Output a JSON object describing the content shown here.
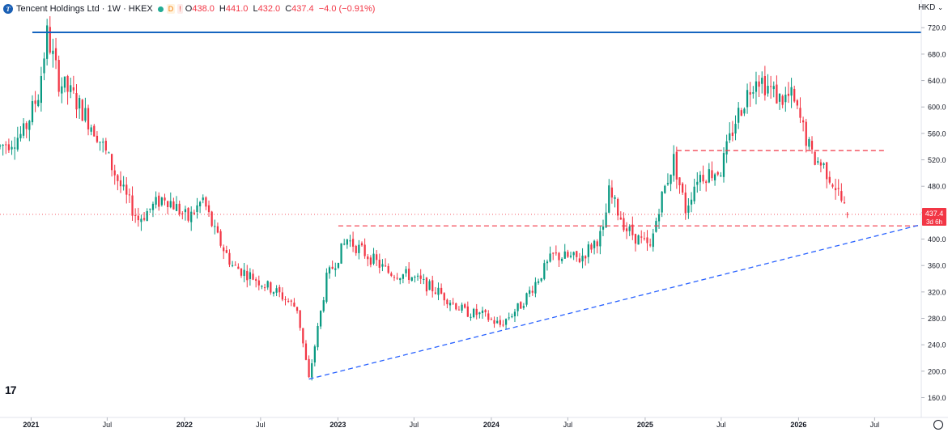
{
  "header": {
    "symbol": "Tencent Holdings Ltd · 1W · HKEX",
    "logo_letter": "T",
    "badge_d": "D",
    "badge_flag": "!",
    "ohlc": {
      "o_label": "O",
      "o": "438.0",
      "h_label": "H",
      "h": "441.0",
      "l_label": "L",
      "l": "432.0",
      "c_label": "C",
      "c": "437.4",
      "change": "−4.0 (−0.91%)"
    }
  },
  "currency": {
    "label": "HKD",
    "icon": "chevron-down-icon"
  },
  "price_tag": {
    "price": "437.4",
    "countdown": "3d 6h"
  },
  "tv_logo": "17",
  "colors": {
    "up": "#089981",
    "down": "#f23645",
    "wick": "#131722",
    "trendline": "#2962ff",
    "resistance": "#1565c0",
    "support": "#f23645"
  },
  "chart_data": {
    "type": "candlestick",
    "interval": "1W",
    "currency": "HKD",
    "ylim": [
      130,
      735
    ],
    "y_ticks": [
      160,
      200,
      240,
      280,
      320,
      360,
      400,
      440,
      480,
      520,
      560,
      600,
      640,
      680,
      720
    ],
    "x_ticks": [
      {
        "date": "2021-01-01",
        "label": "2021"
      },
      {
        "date": "2021-07-01",
        "label": "Jul"
      },
      {
        "date": "2022-01-01",
        "label": "2022"
      },
      {
        "date": "2022-07-01",
        "label": "Jul"
      },
      {
        "date": "2023-01-01",
        "label": "2023"
      },
      {
        "date": "2023-07-01",
        "label": "Jul"
      },
      {
        "date": "2024-01-01",
        "label": "2024"
      },
      {
        "date": "2024-07-01",
        "label": "Jul"
      },
      {
        "date": "2025-01-01",
        "label": "2025"
      },
      {
        "date": "2025-07-01",
        "label": "Jul"
      },
      {
        "date": "2026-01-01",
        "label": "2026"
      },
      {
        "date": "2026-07-01",
        "label": "Jul"
      }
    ],
    "x_range": [
      "2020-10-19",
      "2026-10-20"
    ],
    "price_anchors": [
      [
        "2020-10-19",
        540
      ],
      [
        "2020-12-14",
        560
      ],
      [
        "2021-01-18",
        620
      ],
      [
        "2021-02-08",
        710
      ],
      [
        "2021-03-08",
        640
      ],
      [
        "2021-04-12",
        615
      ],
      [
        "2021-06-07",
        560
      ],
      [
        "2021-08-09",
        470
      ],
      [
        "2021-09-13",
        430
      ],
      [
        "2021-11-15",
        465
      ],
      [
        "2022-01-10",
        430
      ],
      [
        "2022-02-14",
        460
      ],
      [
        "2022-03-14",
        410
      ],
      [
        "2022-04-25",
        360
      ],
      [
        "2022-06-06",
        345
      ],
      [
        "2022-08-08",
        320
      ],
      [
        "2022-09-26",
        295
      ],
      [
        "2022-10-24",
        188
      ],
      [
        "2022-12-05",
        340
      ],
      [
        "2023-01-23",
        400
      ],
      [
        "2023-03-13",
        375
      ],
      [
        "2023-05-01",
        350
      ],
      [
        "2023-06-19",
        345
      ],
      [
        "2023-08-28",
        320
      ],
      [
        "2023-10-30",
        290
      ],
      [
        "2023-12-11",
        285
      ],
      [
        "2024-01-22",
        270
      ],
      [
        "2024-03-11",
        300
      ],
      [
        "2024-05-27",
        375
      ],
      [
        "2024-07-29",
        370
      ],
      [
        "2024-09-23",
        410
      ],
      [
        "2024-10-07",
        470
      ],
      [
        "2024-11-18",
        415
      ],
      [
        "2025-01-13",
        385
      ],
      [
        "2025-02-03",
        450
      ],
      [
        "2025-03-10",
        520
      ],
      [
        "2025-04-07",
        445
      ],
      [
        "2025-05-05",
        495
      ],
      [
        "2025-06-30",
        505
      ],
      [
        "2025-08-04",
        580
      ],
      [
        "2025-09-22",
        650
      ],
      [
        "2025-10-13",
        635
      ],
      [
        "2025-11-17",
        612
      ],
      [
        "2025-12-15",
        615
      ],
      [
        "2026-01-05",
        580
      ],
      [
        "2026-02-02",
        525
      ],
      [
        "2026-03-02",
        510
      ],
      [
        "2026-03-30",
        480
      ],
      [
        "2026-04-27",
        437.4
      ]
    ],
    "last": {
      "open": 438.0,
      "high": 441.0,
      "low": 432.0,
      "close": 437.4,
      "change": -4.0,
      "change_pct": -0.91
    },
    "lines": [
      {
        "kind": "horizontal",
        "style": "solid",
        "price": 713,
        "from": "2021-01-04",
        "to": "2026-10-20",
        "color": "#1565c0"
      },
      {
        "kind": "horizontal",
        "style": "dashed",
        "price": 534,
        "from": "2025-03-17",
        "to": "2026-07-27",
        "color": "#f23645"
      },
      {
        "kind": "horizontal",
        "style": "dashed",
        "price": 420,
        "from": "2023-01-02",
        "to": "2026-10-20",
        "color": "#f23645"
      },
      {
        "kind": "trend",
        "style": "dashed",
        "from": [
          "2022-10-24",
          188
        ],
        "to": [
          "2026-10-20",
          422
        ],
        "color": "#2962ff"
      },
      {
        "kind": "price_line",
        "style": "dotted",
        "price": 437.4,
        "color": "#f23645"
      }
    ]
  }
}
